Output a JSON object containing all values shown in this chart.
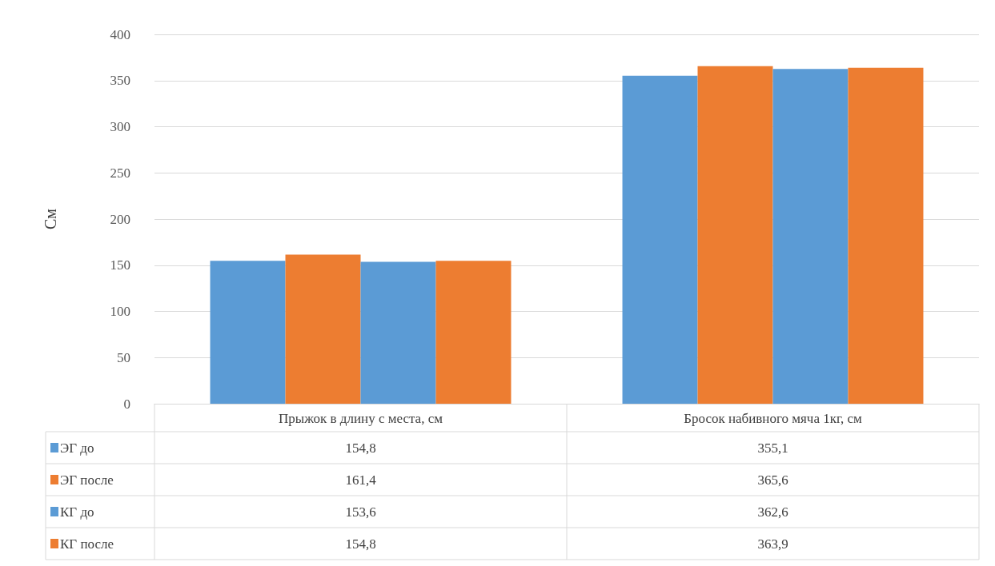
{
  "chart_data": {
    "type": "bar",
    "ylabel": "См",
    "categories": [
      "Прыжок в длину с места, см",
      "Бросок набивного мяча 1кг, см"
    ],
    "series": [
      {
        "name": "ЭГ до",
        "color": "#5b9bd5",
        "values": [
          154.8,
          355.1
        ],
        "value_labels": [
          "154,8",
          "355,1"
        ]
      },
      {
        "name": "ЭГ после",
        "color": "#ed7d31",
        "values": [
          161.4,
          365.6
        ],
        "value_labels": [
          "161,4",
          "365,6"
        ]
      },
      {
        "name": "КГ до",
        "color": "#5b9bd5",
        "values": [
          153.6,
          362.6
        ],
        "value_labels": [
          "153,6",
          "362,6"
        ]
      },
      {
        "name": "КГ после",
        "color": "#ed7d31",
        "values": [
          154.8,
          363.9
        ],
        "value_labels": [
          "154,8",
          "363,9"
        ]
      }
    ],
    "ylim": [
      0,
      400
    ],
    "yticks": [
      0,
      50,
      100,
      150,
      200,
      250,
      300,
      350,
      400
    ],
    "grid": "y",
    "legend": "bottom left"
  }
}
